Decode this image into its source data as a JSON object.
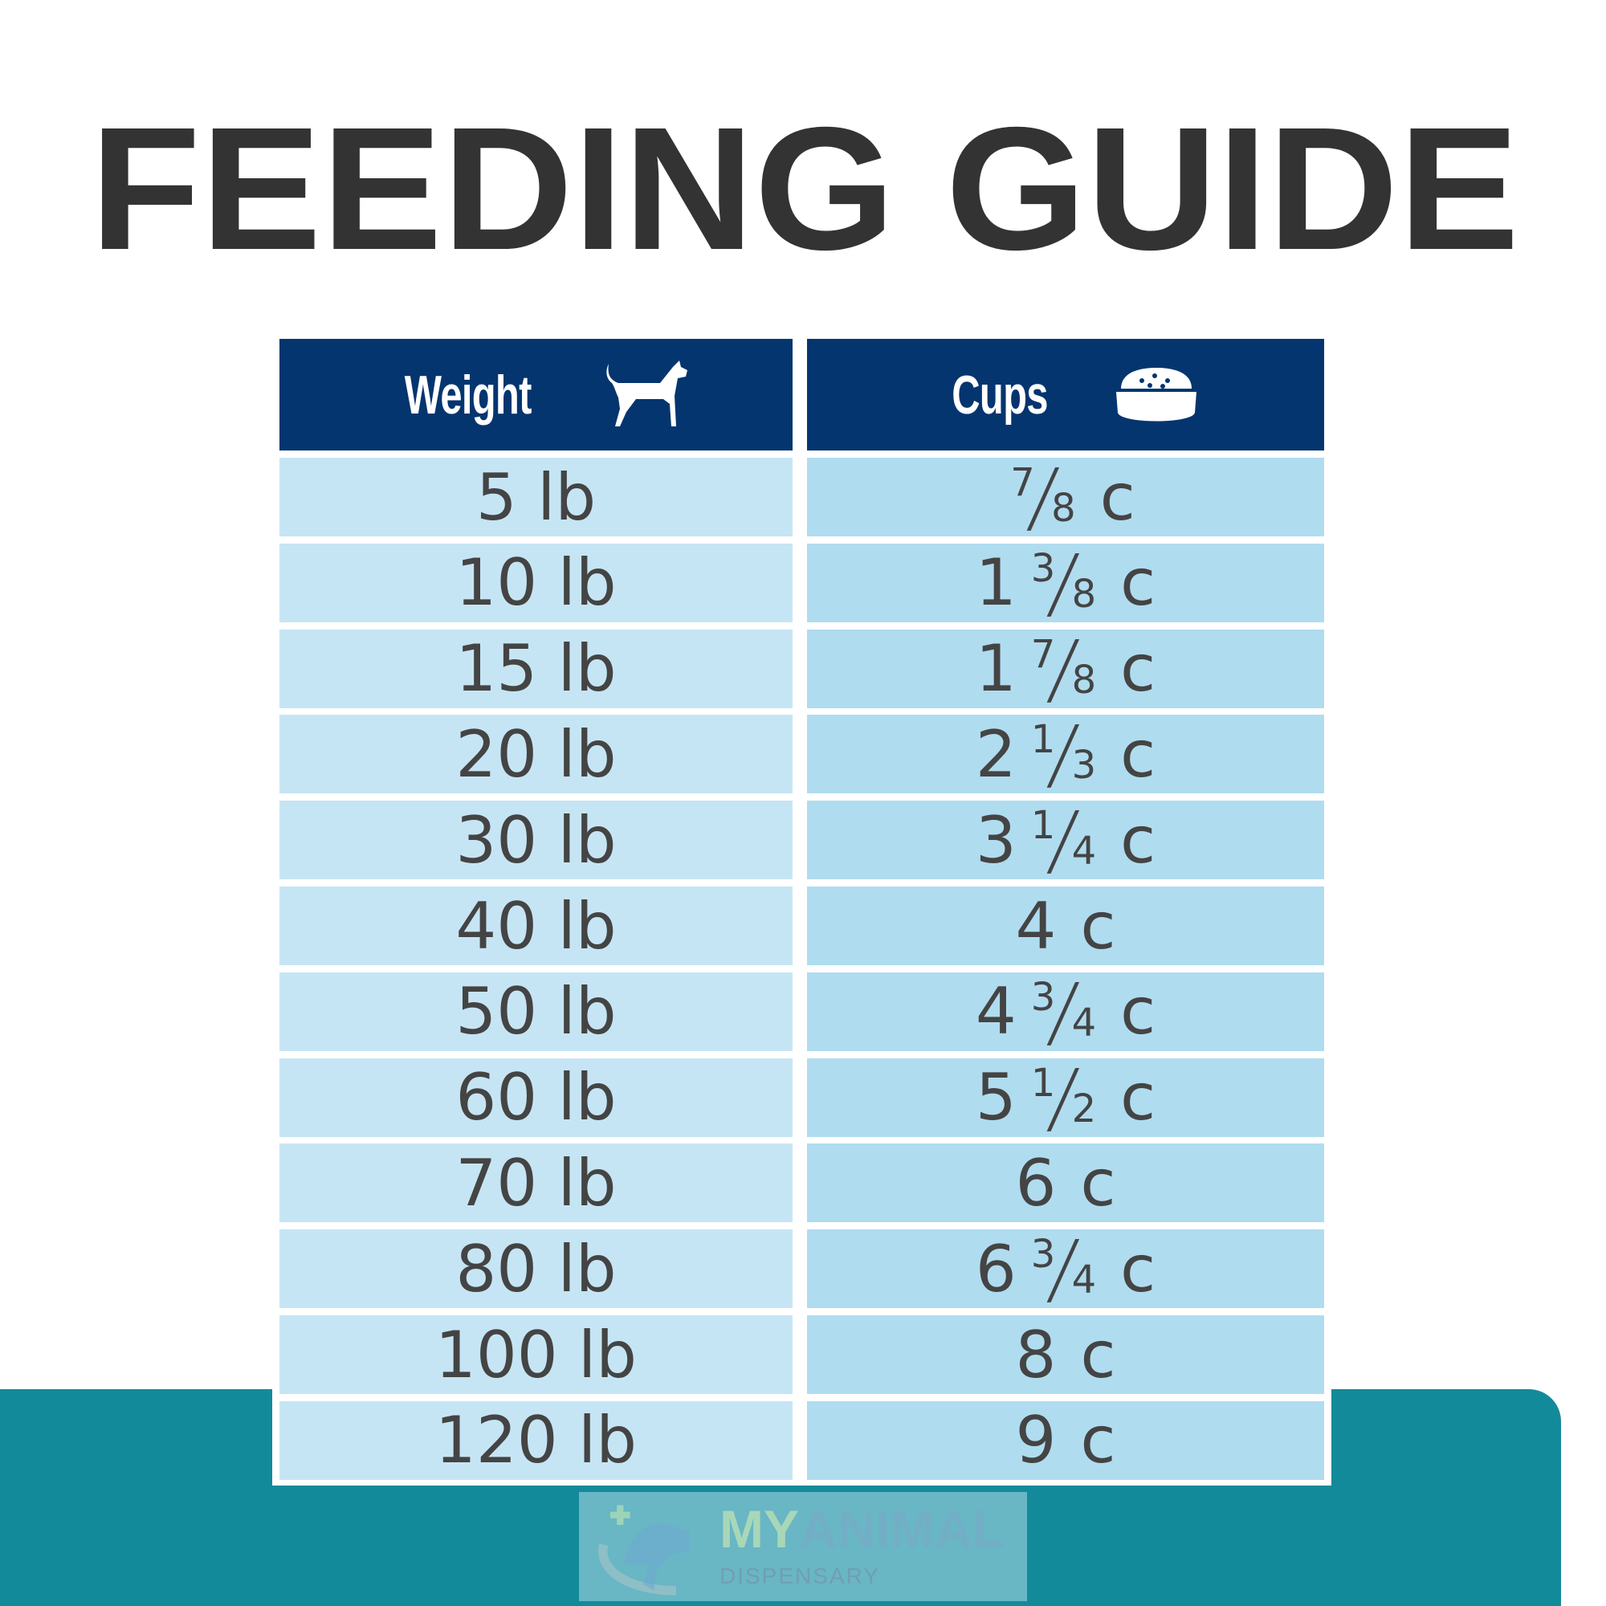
{
  "title": "FEEDING GUIDE",
  "headers": {
    "weight": "Weight",
    "cups": "Cups"
  },
  "icons": {
    "weight": "dog-icon",
    "cups": "food-bowl-icon"
  },
  "colors": {
    "header": "#04356f",
    "weight_cell": "#c6e5f4",
    "cups_cell": "#b0dcf0",
    "teal": "#138a9a",
    "text": "#444444",
    "title": "#333333"
  },
  "rows": [
    {
      "weight": "5 lb",
      "cups": {
        "whole": "",
        "num": "7",
        "den": "8",
        "unit": "c"
      }
    },
    {
      "weight": "10 lb",
      "cups": {
        "whole": "1",
        "num": "3",
        "den": "8",
        "unit": "c"
      }
    },
    {
      "weight": "15 lb",
      "cups": {
        "whole": "1",
        "num": "7",
        "den": "8",
        "unit": "c"
      }
    },
    {
      "weight": "20 lb",
      "cups": {
        "whole": "2",
        "num": "1",
        "den": "3",
        "unit": "c"
      }
    },
    {
      "weight": "30 lb",
      "cups": {
        "whole": "3",
        "num": "1",
        "den": "4",
        "unit": "c"
      }
    },
    {
      "weight": "40 lb",
      "cups": {
        "whole": "4",
        "num": "",
        "den": "",
        "unit": "c"
      }
    },
    {
      "weight": "50 lb",
      "cups": {
        "whole": "4",
        "num": "3",
        "den": "4",
        "unit": "c"
      }
    },
    {
      "weight": "60 lb",
      "cups": {
        "whole": "5",
        "num": "1",
        "den": "2",
        "unit": "c"
      }
    },
    {
      "weight": "70 lb",
      "cups": {
        "whole": "6",
        "num": "",
        "den": "",
        "unit": "c"
      }
    },
    {
      "weight": "80 lb",
      "cups": {
        "whole": "6",
        "num": "3",
        "den": "4",
        "unit": "c"
      }
    },
    {
      "weight": "100 lb",
      "cups": {
        "whole": "8",
        "num": "",
        "den": "",
        "unit": "c"
      }
    },
    {
      "weight": "120 lb",
      "cups": {
        "whole": "9",
        "num": "",
        "den": "",
        "unit": "c"
      }
    }
  ],
  "watermark": {
    "brand_a": "MY",
    "brand_b": "ANIMAL",
    "sub": "DISPENSARY"
  }
}
